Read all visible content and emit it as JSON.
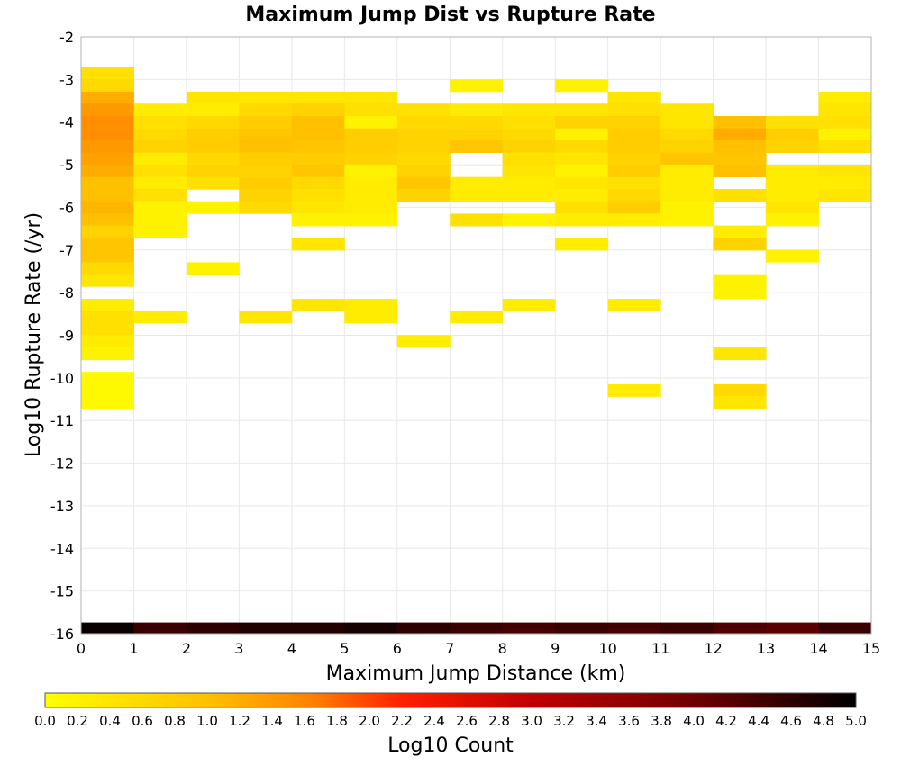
{
  "chart_data": {
    "type": "heatmap",
    "title": "Maximum Jump Dist vs Rupture Rate",
    "xlabel": "Maximum Jump Distance (km)",
    "ylabel": "Log10 Rupture Rate (/yr)",
    "xlim": [
      0,
      15
    ],
    "ylim": [
      -16,
      -2
    ],
    "x_ticks": [
      "0",
      "1",
      "2",
      "3",
      "4",
      "5",
      "6",
      "7",
      "8",
      "9",
      "10",
      "11",
      "12",
      "13",
      "14",
      "15"
    ],
    "y_ticks": [
      "-2",
      "-3",
      "-4",
      "-5",
      "-6",
      "-7",
      "-8",
      "-9",
      "-10",
      "-11",
      "-12",
      "-13",
      "-14",
      "-15",
      "-16"
    ],
    "grid": true,
    "bin_width_x": 1,
    "bin_height_y": 0.2857,
    "colorbar": {
      "label": "Log10 Count",
      "min": 0.0,
      "max": 5.0,
      "ticks": [
        "0.0",
        "0.2",
        "0.4",
        "0.6",
        "0.8",
        "1.0",
        "1.2",
        "1.4",
        "1.6",
        "1.8",
        "2.0",
        "2.2",
        "2.4",
        "2.6",
        "2.8",
        "3.0",
        "3.2",
        "3.4",
        "3.6",
        "3.8",
        "4.0",
        "4.2",
        "4.4",
        "4.6",
        "4.8",
        "5.0"
      ]
    },
    "bottom_row": {
      "y_center": -15.86,
      "values": [
        4.9,
        4.5,
        4.6,
        4.7,
        4.7,
        4.8,
        4.6,
        4.5,
        4.4,
        4.5,
        4.4,
        4.5,
        4.3,
        4.2,
        4.5
      ]
    },
    "cells": [
      [
        0,
        -2.86,
        0.5
      ],
      [
        0,
        -3.14,
        0.6
      ],
      [
        0,
        -3.43,
        1.2
      ],
      [
        0,
        -3.71,
        1.4
      ],
      [
        0,
        -4.0,
        1.5
      ],
      [
        0,
        -4.29,
        1.5
      ],
      [
        0,
        -4.57,
        1.4
      ],
      [
        0,
        -4.86,
        1.3
      ],
      [
        0,
        -5.14,
        1.2
      ],
      [
        0,
        -5.43,
        1.0
      ],
      [
        0,
        -5.71,
        1.0
      ],
      [
        0,
        -6.0,
        1.1
      ],
      [
        0,
        -6.29,
        1.0
      ],
      [
        0,
        -6.57,
        0.7
      ],
      [
        0,
        -6.86,
        0.9
      ],
      [
        0,
        -7.14,
        0.9
      ],
      [
        0,
        -7.43,
        0.6
      ],
      [
        0,
        -7.71,
        0.4
      ],
      [
        0,
        -8.29,
        0.3
      ],
      [
        0,
        -8.57,
        0.5
      ],
      [
        0,
        -8.86,
        0.5
      ],
      [
        0,
        -9.14,
        0.3
      ],
      [
        0,
        -9.43,
        0.2
      ],
      [
        0,
        -10.0,
        0.1
      ],
      [
        0,
        -10.29,
        0.1
      ],
      [
        0,
        -10.57,
        0.1
      ],
      [
        1,
        -3.71,
        0.3
      ],
      [
        1,
        -4.0,
        0.5
      ],
      [
        1,
        -4.29,
        0.6
      ],
      [
        1,
        -4.57,
        0.7
      ],
      [
        1,
        -4.86,
        0.3
      ],
      [
        1,
        -5.14,
        0.5
      ],
      [
        1,
        -5.43,
        0.3
      ],
      [
        1,
        -5.71,
        0.5
      ],
      [
        1,
        -6.0,
        0.2
      ],
      [
        1,
        -6.29,
        0.2
      ],
      [
        1,
        -6.57,
        0.2
      ],
      [
        1,
        -8.57,
        0.3
      ],
      [
        2,
        -3.43,
        0.4
      ],
      [
        2,
        -3.71,
        0.3
      ],
      [
        2,
        -4.0,
        0.6
      ],
      [
        2,
        -4.29,
        0.8
      ],
      [
        2,
        -4.57,
        0.8
      ],
      [
        2,
        -4.86,
        0.6
      ],
      [
        2,
        -5.14,
        0.7
      ],
      [
        2,
        -5.43,
        0.5
      ],
      [
        2,
        -6.0,
        0.2
      ],
      [
        2,
        -7.43,
        0.2
      ],
      [
        3,
        -3.43,
        0.4
      ],
      [
        3,
        -3.71,
        0.6
      ],
      [
        3,
        -4.0,
        0.8
      ],
      [
        3,
        -4.29,
        0.9
      ],
      [
        3,
        -4.57,
        1.0
      ],
      [
        3,
        -4.86,
        0.8
      ],
      [
        3,
        -5.14,
        0.7
      ],
      [
        3,
        -5.43,
        0.8
      ],
      [
        3,
        -5.71,
        0.7
      ],
      [
        3,
        -6.0,
        0.6
      ],
      [
        3,
        -8.57,
        0.4
      ],
      [
        4,
        -3.43,
        0.4
      ],
      [
        4,
        -3.71,
        0.7
      ],
      [
        4,
        -4.0,
        1.0
      ],
      [
        4,
        -4.29,
        1.0
      ],
      [
        4,
        -4.57,
        0.9
      ],
      [
        4,
        -4.86,
        0.8
      ],
      [
        4,
        -5.14,
        0.9
      ],
      [
        4,
        -5.43,
        0.6
      ],
      [
        4,
        -5.71,
        0.5
      ],
      [
        4,
        -6.0,
        0.4
      ],
      [
        4,
        -6.29,
        0.2
      ],
      [
        4,
        -6.86,
        0.4
      ],
      [
        4,
        -8.29,
        0.4
      ],
      [
        5,
        -3.43,
        0.4
      ],
      [
        5,
        -3.71,
        0.5
      ],
      [
        5,
        -4.0,
        0.2
      ],
      [
        5,
        -4.29,
        0.8
      ],
      [
        5,
        -4.57,
        0.8
      ],
      [
        5,
        -4.86,
        0.7
      ],
      [
        5,
        -5.14,
        0.2
      ],
      [
        5,
        -5.43,
        0.3
      ],
      [
        5,
        -5.71,
        0.3
      ],
      [
        5,
        -6.0,
        0.3
      ],
      [
        5,
        -6.29,
        0.2
      ],
      [
        5,
        -8.29,
        0.3
      ],
      [
        5,
        -8.57,
        0.3
      ],
      [
        6,
        -3.71,
        0.5
      ],
      [
        6,
        -4.0,
        0.6
      ],
      [
        6,
        -4.29,
        0.7
      ],
      [
        6,
        -4.57,
        0.7
      ],
      [
        6,
        -4.86,
        0.6
      ],
      [
        6,
        -5.14,
        0.7
      ],
      [
        6,
        -5.43,
        0.9
      ],
      [
        6,
        -5.71,
        0.7
      ],
      [
        6,
        -9.14,
        0.3
      ],
      [
        7,
        -3.14,
        0.2
      ],
      [
        7,
        -3.71,
        0.3
      ],
      [
        7,
        -4.0,
        0.6
      ],
      [
        7,
        -4.29,
        0.7
      ],
      [
        7,
        -4.57,
        0.9
      ],
      [
        7,
        -5.43,
        0.3
      ],
      [
        7,
        -5.71,
        0.3
      ],
      [
        7,
        -6.29,
        0.5
      ],
      [
        7,
        -8.57,
        0.3
      ],
      [
        8,
        -3.71,
        0.4
      ],
      [
        8,
        -4.0,
        0.5
      ],
      [
        8,
        -4.29,
        0.6
      ],
      [
        8,
        -4.57,
        0.7
      ],
      [
        8,
        -4.86,
        0.5
      ],
      [
        8,
        -5.14,
        0.4
      ],
      [
        8,
        -5.43,
        0.3
      ],
      [
        8,
        -5.71,
        0.3
      ],
      [
        8,
        -6.29,
        0.2
      ],
      [
        8,
        -8.29,
        0.3
      ],
      [
        9,
        -3.14,
        0.2
      ],
      [
        9,
        -3.71,
        0.4
      ],
      [
        9,
        -4.0,
        0.7
      ],
      [
        9,
        -4.29,
        0.2
      ],
      [
        9,
        -4.57,
        0.6
      ],
      [
        9,
        -4.86,
        0.4
      ],
      [
        9,
        -5.14,
        0.2
      ],
      [
        9,
        -5.43,
        0.4
      ],
      [
        9,
        -5.71,
        0.3
      ],
      [
        9,
        -6.0,
        0.5
      ],
      [
        9,
        -6.29,
        0.3
      ],
      [
        9,
        -6.86,
        0.3
      ],
      [
        10,
        -3.43,
        0.4
      ],
      [
        10,
        -3.71,
        0.5
      ],
      [
        10,
        -4.0,
        0.7
      ],
      [
        10,
        -4.29,
        0.8
      ],
      [
        10,
        -4.57,
        0.8
      ],
      [
        10,
        -4.86,
        0.7
      ],
      [
        10,
        -5.14,
        0.8
      ],
      [
        10,
        -5.43,
        0.5
      ],
      [
        10,
        -5.71,
        0.6
      ],
      [
        10,
        -6.0,
        0.8
      ],
      [
        10,
        -6.29,
        0.3
      ],
      [
        10,
        -8.29,
        0.3
      ],
      [
        10,
        -10.29,
        0.3
      ],
      [
        11,
        -3.71,
        0.4
      ],
      [
        11,
        -4.0,
        0.4
      ],
      [
        11,
        -4.29,
        0.6
      ],
      [
        11,
        -4.57,
        0.7
      ],
      [
        11,
        -4.86,
        0.9
      ],
      [
        11,
        -5.14,
        0.3
      ],
      [
        11,
        -5.43,
        0.3
      ],
      [
        11,
        -5.71,
        0.3
      ],
      [
        11,
        -6.0,
        0.2
      ],
      [
        11,
        -6.29,
        0.2
      ],
      [
        12,
        -4.0,
        1.0
      ],
      [
        12,
        -4.29,
        1.2
      ],
      [
        12,
        -4.57,
        1.0
      ],
      [
        12,
        -4.86,
        0.9
      ],
      [
        12,
        -5.14,
        1.0
      ],
      [
        12,
        -5.71,
        0.5
      ],
      [
        12,
        -6.57,
        0.3
      ],
      [
        12,
        -6.86,
        0.7
      ],
      [
        12,
        -7.71,
        0.2
      ],
      [
        12,
        -8.0,
        0.2
      ],
      [
        12,
        -9.43,
        0.4
      ],
      [
        12,
        -10.29,
        0.6
      ],
      [
        12,
        -10.57,
        0.4
      ],
      [
        13,
        -4.0,
        0.5
      ],
      [
        13,
        -4.29,
        0.8
      ],
      [
        13,
        -4.57,
        0.7
      ],
      [
        13,
        -5.14,
        0.3
      ],
      [
        13,
        -5.43,
        0.3
      ],
      [
        13,
        -5.71,
        0.3
      ],
      [
        13,
        -6.0,
        0.4
      ],
      [
        13,
        -6.29,
        0.2
      ],
      [
        13,
        -7.14,
        0.2
      ],
      [
        14,
        -3.43,
        0.3
      ],
      [
        14,
        -3.71,
        0.4
      ],
      [
        14,
        -4.0,
        0.5
      ],
      [
        14,
        -4.29,
        0.2
      ],
      [
        14,
        -4.57,
        0.5
      ],
      [
        14,
        -5.14,
        0.4
      ],
      [
        14,
        -5.43,
        0.3
      ],
      [
        14,
        -5.71,
        0.4
      ]
    ]
  }
}
